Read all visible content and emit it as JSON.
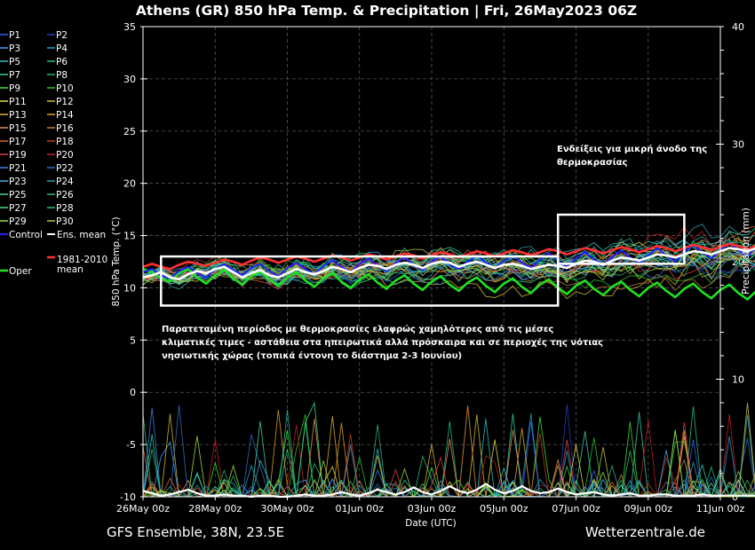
{
  "chart_data": {
    "type": "line",
    "title": "Athens  (GR)  850 hPa Temp. & Precipitation | Fri, 26May2023 06Z",
    "xlabel": "Date (UTC)",
    "ylabel": "850 hPa Temp. (°C)",
    "y2label": "Precipitation (mm)",
    "x_ticks": [
      "26May 00z",
      "28May 00z",
      "30May 00z",
      "01Jun 00z",
      "03Jun 00z",
      "05Jun 00z",
      "07Jun 00z",
      "09Jun 00z",
      "11Jun 00z"
    ],
    "x_range_days": [
      0,
      16
    ],
    "x_step_hours": 6,
    "ylim": [
      -10,
      35
    ],
    "y_ticks": [
      -10,
      -5,
      0,
      5,
      10,
      15,
      20,
      25,
      30,
      35
    ],
    "y2lim": [
      0,
      40
    ],
    "y2_ticks": [
      0,
      10,
      20,
      30,
      40
    ],
    "grid": true,
    "footer_left": "GFS Ensemble, 38N, 23.5E",
    "footer_right": "Wetterzentrale.de",
    "legend_members": [
      {
        "name": "P1",
        "color": "#3060ff"
      },
      {
        "name": "P2",
        "color": "#2040c0"
      },
      {
        "name": "P3",
        "color": "#40a0ff"
      },
      {
        "name": "P4",
        "color": "#20a0d0"
      },
      {
        "name": "P5",
        "color": "#30c0c0"
      },
      {
        "name": "P6",
        "color": "#20c080"
      },
      {
        "name": "P7",
        "color": "#30d0a0"
      },
      {
        "name": "P8",
        "color": "#20b060"
      },
      {
        "name": "P9",
        "color": "#40e040"
      },
      {
        "name": "P10",
        "color": "#30c030"
      },
      {
        "name": "P11",
        "color": "#e0e040"
      },
      {
        "name": "P12",
        "color": "#d0c030"
      },
      {
        "name": "P13",
        "color": "#e0b030"
      },
      {
        "name": "P14",
        "color": "#e0a020"
      },
      {
        "name": "P15",
        "color": "#e09060"
      },
      {
        "name": "P16",
        "color": "#c08040"
      },
      {
        "name": "P17",
        "color": "#e06030"
      },
      {
        "name": "P18",
        "color": "#c04020"
      },
      {
        "name": "P19",
        "color": "#e04040"
      },
      {
        "name": "P20",
        "color": "#c02020"
      },
      {
        "name": "P21",
        "color": "#4080e0"
      },
      {
        "name": "P22",
        "color": "#3070c0"
      },
      {
        "name": "P23",
        "color": "#40b0e0"
      },
      {
        "name": "P24",
        "color": "#30a0b0"
      },
      {
        "name": "P25",
        "color": "#40d0b0"
      },
      {
        "name": "P26",
        "color": "#30b090"
      },
      {
        "name": "P27",
        "color": "#40e080"
      },
      {
        "name": "P28",
        "color": "#30c070"
      },
      {
        "name": "P29",
        "color": "#a0e040"
      },
      {
        "name": "P30",
        "color": "#c0c040"
      }
    ],
    "legend_special": [
      {
        "name": "Control",
        "color": "#2020ff"
      },
      {
        "name": "Ens. mean",
        "color": "#ffffff"
      },
      {
        "name": "Oper",
        "color": "#20e020"
      },
      {
        "name": "1981-2010 mean",
        "color": "#ff3030"
      }
    ],
    "series_temp": {
      "ens_mean": [
        11,
        11.2,
        11.5,
        11,
        10.8,
        11.3,
        11.6,
        11.4,
        11.8,
        12,
        11.5,
        11,
        11.4,
        11.7,
        11.2,
        11,
        11.4,
        11.8,
        11.5,
        11.3,
        11.6,
        12,
        11.8,
        11.5,
        11.9,
        12.2,
        12.1,
        11.8,
        12.2,
        12.4,
        12.2,
        11.9,
        12.3,
        12.5,
        12.4,
        12,
        12.3,
        12.5,
        12.2,
        11.9,
        12.2,
        12.3,
        12.1,
        11.8,
        12,
        12.2,
        12.1,
        11.9,
        12.3,
        12.6,
        12.5,
        12.2,
        12.6,
        12.9,
        12.8,
        12.6,
        12.9,
        13.2,
        13.1,
        12.9,
        13.2,
        13.5,
        13.4,
        13.2,
        13.5,
        13.8,
        13.7,
        13.5,
        13.8,
        14.1,
        14,
        13.8,
        14.1,
        14.4,
        14.3,
        14.1,
        14.5,
        14.8,
        14.7,
        14.5,
        14.9,
        15.2,
        15.1,
        14.9,
        15.3,
        15.6,
        15.5,
        15.3,
        15.7,
        16,
        15.9,
        15.7,
        16.1,
        16.5,
        16.8,
        16.6,
        16.4,
        16.2,
        16.6,
        16.9,
        16.5,
        16.2,
        16.5
      ],
      "clim_mean": [
        12,
        12.3,
        12,
        11.8,
        12.2,
        12.5,
        12.3,
        12.1,
        12.4,
        12.7,
        12.5,
        12.2,
        12.6,
        12.9,
        12.7,
        12.4,
        12.7,
        13,
        12.8,
        12.5,
        12.8,
        13.1,
        12.9,
        12.6,
        12.9,
        13.2,
        13,
        12.7,
        13,
        13.3,
        13.1,
        12.8,
        13.1,
        13.4,
        13.2,
        12.9,
        13.2,
        13.5,
        13.3,
        13,
        13.3,
        13.6,
        13.4,
        13.1,
        13.4,
        13.7,
        13.5,
        13.2,
        13.5,
        13.8,
        13.6,
        13.3,
        13.6,
        13.9,
        13.7,
        13.4,
        13.7,
        14,
        13.8,
        13.5,
        13.8,
        14.1,
        13.9,
        13.6,
        13.9,
        14.2,
        14,
        13.7,
        14,
        14.3,
        14.1,
        13.8,
        14.1,
        14.4,
        14.2,
        13.9,
        14.2,
        14.5,
        14.3,
        14,
        14.3,
        14.6,
        14.4,
        14.1,
        14.4,
        14.7,
        14.5,
        14.2,
        14.5,
        14.8,
        14.6,
        14.3,
        14.6,
        14.9,
        14.7,
        14.4,
        14.7,
        15,
        14.8,
        14.5,
        14.6,
        14.5,
        14.3
      ],
      "control": [
        11.5,
        11.8,
        11.2,
        10.9,
        11.6,
        12,
        11.4,
        11,
        11.8,
        12.3,
        11.7,
        11.2,
        11.9,
        12.3,
        11.6,
        11.1,
        11.9,
        12.4,
        11.8,
        11.3,
        12.1,
        12.6,
        12,
        11.5,
        12.3,
        12.8,
        12.1,
        11.6,
        12.4,
        12.9,
        12.2,
        11.7,
        12.5,
        13,
        12.3,
        11.8,
        12.5,
        13.1,
        12.4,
        11.9,
        12.6,
        13.1,
        12.4,
        11.9,
        12.7,
        13.3,
        12.6,
        12,
        12.8,
        13.4,
        12.7,
        12.1,
        12.9,
        13.6,
        12.9,
        12.3,
        13.1,
        13.8,
        13.1,
        12.5,
        13.4,
        14.1,
        13.4,
        12.8,
        13.6,
        14.3,
        13.6,
        13,
        13.9,
        14.6,
        13.9,
        13.3,
        14.2,
        14.9,
        14.2,
        13.6,
        14.5,
        15.2,
        14.5,
        13.9,
        14.8,
        15.5,
        14.8,
        14.2,
        15.1,
        15.8,
        15.1,
        14.5,
        15.4,
        16.1,
        15.4,
        14.8,
        15.7,
        16.4,
        15.7,
        15.1,
        16,
        16.7,
        16,
        15.4,
        16.1,
        16.3,
        15.9
      ],
      "oper": [
        11.8,
        11.5,
        10.9,
        10.6,
        11.4,
        11.8,
        11,
        10.4,
        11.2,
        11.7,
        10.9,
        10.3,
        11.1,
        11.6,
        10.8,
        10.2,
        11,
        11.5,
        10.7,
        10.1,
        10.9,
        11.4,
        10.6,
        10,
        10.8,
        11.3,
        10.5,
        9.9,
        10.7,
        11.2,
        10.4,
        9.8,
        10.6,
        11.1,
        10.3,
        9.7,
        10.5,
        11,
        10.2,
        9.6,
        10.4,
        10.9,
        10.1,
        9.5,
        10.3,
        10.8,
        10,
        9.4,
        10.2,
        10.7,
        9.9,
        9.3,
        10.1,
        10.6,
        9.8,
        9.2,
        10,
        10.5,
        9.7,
        9.1,
        9.9,
        10.4,
        9.6,
        9,
        9.8,
        10.3,
        9.5,
        8.9,
        9.7,
        10.2,
        9.4,
        8.8,
        9.6,
        10.1,
        9.3,
        8.7,
        9.5,
        10,
        9.2,
        8.6,
        9.4,
        9.9,
        9.1,
        8.5,
        9.3,
        9.8,
        9,
        8.4,
        9.2,
        9.7,
        8.9,
        8.3,
        9.1,
        9.6,
        8.8,
        8.2,
        9,
        9.5,
        8.7,
        8.1,
        9.1,
        9.4,
        9
      ]
    },
    "series_precip": {
      "ens_mean": [
        0.5,
        0.3,
        0.1,
        0.2,
        0.4,
        0.6,
        0.3,
        0.1,
        0.1,
        0.2,
        0.1,
        0.1,
        0,
        0.1,
        0.1,
        0,
        0,
        0.1,
        0.2,
        0.1,
        0.1,
        0.2,
        0.4,
        0.2,
        0.1,
        0.3,
        0.6,
        0.4,
        0.2,
        0.4,
        0.8,
        0.4,
        0.2,
        0.5,
        0.9,
        0.5,
        0.3,
        0.6,
        1.1,
        0.6,
        0.3,
        0.5,
        0.9,
        0.5,
        0.3,
        0.4,
        0.7,
        0.4,
        0.2,
        0.3,
        0.4,
        0.2,
        0.1,
        0.2,
        0.3,
        0.1,
        0.1,
        0.2,
        0.2,
        0.1,
        0.1,
        0.1,
        0.2,
        0.1,
        0.1,
        0.1,
        0.1,
        0.1,
        0.1,
        0.1,
        0.2,
        0.1,
        0.1,
        0.1,
        0.2,
        0.1,
        0.1,
        0.2,
        0.2,
        0.1,
        0.1,
        0.1,
        0.2,
        0.1,
        0.1,
        0.2,
        0.2,
        0.1,
        0.1,
        0.2,
        0.3,
        0.2,
        0.1,
        0.2,
        0.3,
        0.2,
        0.1,
        0.2,
        0.3,
        0.2,
        0.1,
        0.2,
        0.3
      ]
    },
    "annotations": [
      {
        "text": "Ενδείξεις για μικρή άνοδο της θερμοκρασίας",
        "lines": [
          "Ενδείξεις για μικρή άνοδο της",
          "θερμοκρασίας"
        ]
      },
      {
        "text": "Παρατεταμένη περίοδος με θερμοκρασίες ελαφρώς χαμηλότερες από τις μέσες κλιματικές τιμες - αστάθεια στα ηπειρωτικά αλλά πρόσκαιρα και σε περιοχές της νότιας νησιωτικής χώρας (τοπικά έντονη το διάστημα 2-3 Ιουνίου)",
        "lines": [
          "Παρατεταμένη περίοδος με θερμοκρασίες ελαφρώς χαμηλότερες από τις μέσες",
          "κλιματικές τιμες - αστάθεια στα ηπειρωτικά αλλά πρόσκαιρα και σε περιοχές της νότιας",
          "νησιωτικής χώρας (τοπικά έντονη το διάστημα 2-3 Ιουνίου)"
        ]
      }
    ],
    "highlight_boxes": [
      {
        "from_day": 0.5,
        "to_day": 11.5,
        "y_low": 8.3,
        "y_high": 13.0
      },
      {
        "from_day": 11.5,
        "to_day": 15.0,
        "y_low": 12.3,
        "y_high": 17.0
      }
    ]
  }
}
